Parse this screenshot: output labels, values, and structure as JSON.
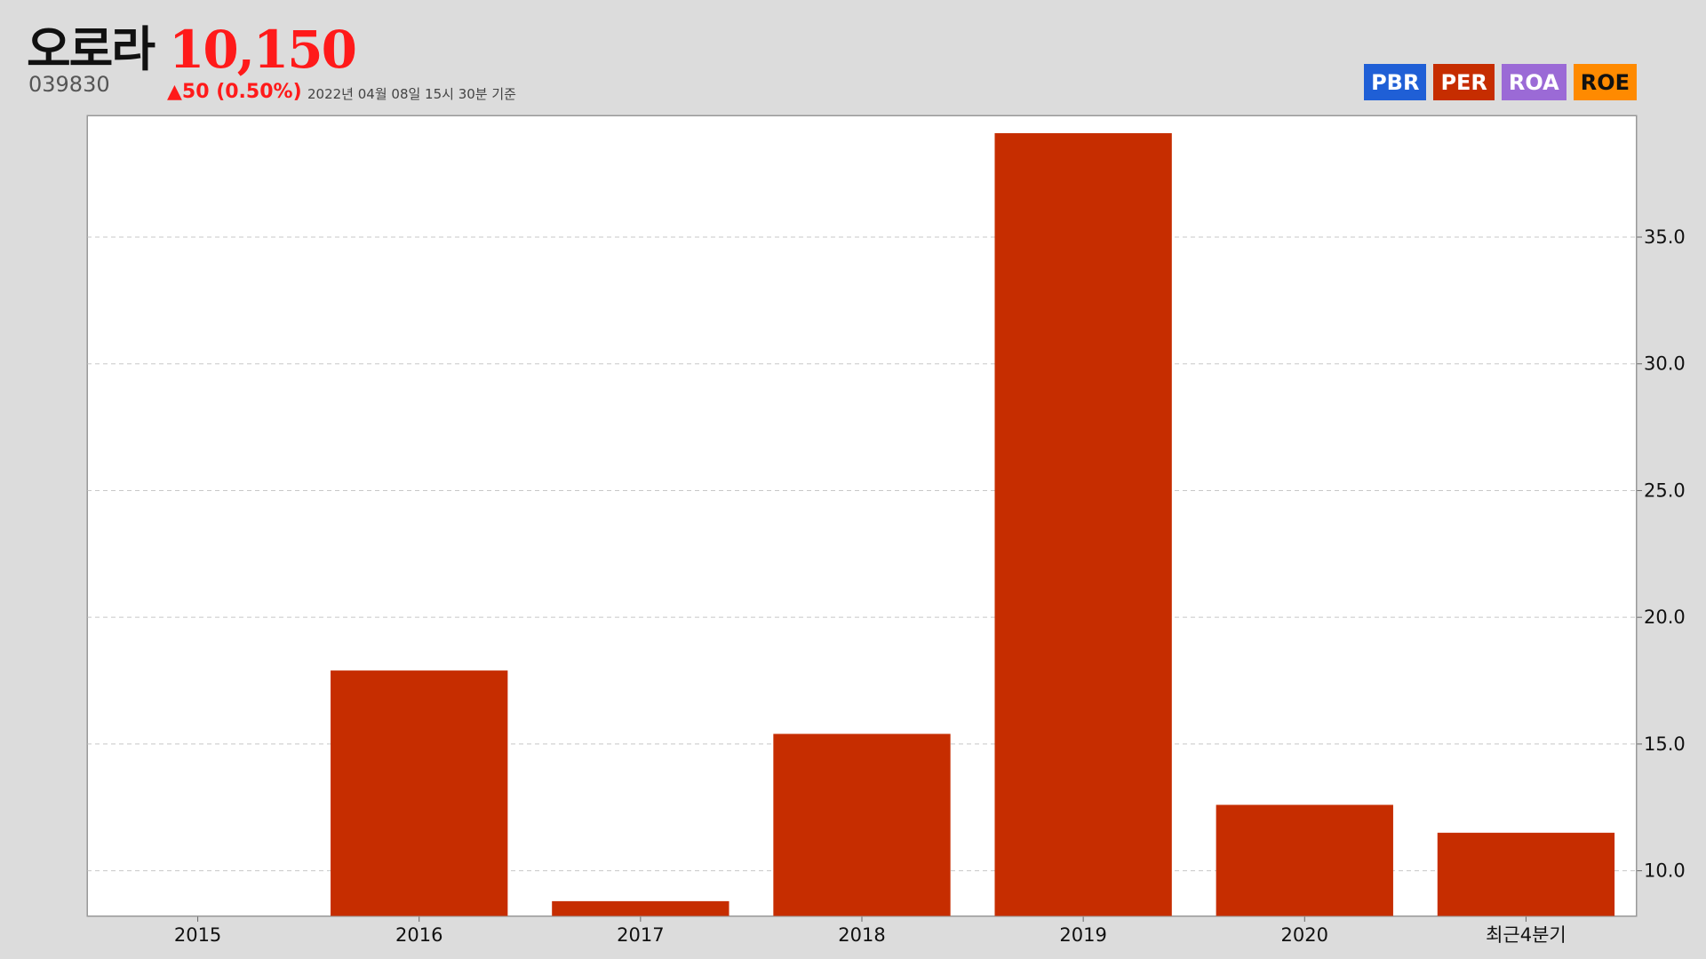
{
  "header": {
    "stock_name": "오로라",
    "stock_code": "039830",
    "price": "10,150",
    "change": "▲50 (0.50%)",
    "as_of": "2022년 04월 08일 15시 30분 기준"
  },
  "metric_tabs": [
    {
      "label": "PBR",
      "color": "#1f5fd6"
    },
    {
      "label": "PER",
      "color": "#c62d00"
    },
    {
      "label": "ROA",
      "color": "#9b6ad6"
    },
    {
      "label": "ROE",
      "color": "#ff8a00"
    }
  ],
  "chart_data": {
    "type": "bar",
    "title": "",
    "xlabel": "",
    "ylabel": "",
    "categories": [
      "2015",
      "2016",
      "2017",
      "2018",
      "2019",
      "2020",
      "최근4분기"
    ],
    "values": [
      null,
      17.9,
      8.8,
      15.4,
      39.1,
      12.6,
      11.5
    ],
    "ylim": [
      8.2,
      39.8
    ],
    "yticks": [
      10,
      15,
      20,
      25,
      30,
      35
    ],
    "ytick_labels": [
      "10.0",
      "15.0",
      "20.0",
      "25.0",
      "30.0",
      "35.0"
    ],
    "yaxis_position": "right",
    "grid": true,
    "bar_color": "#c62d00"
  }
}
